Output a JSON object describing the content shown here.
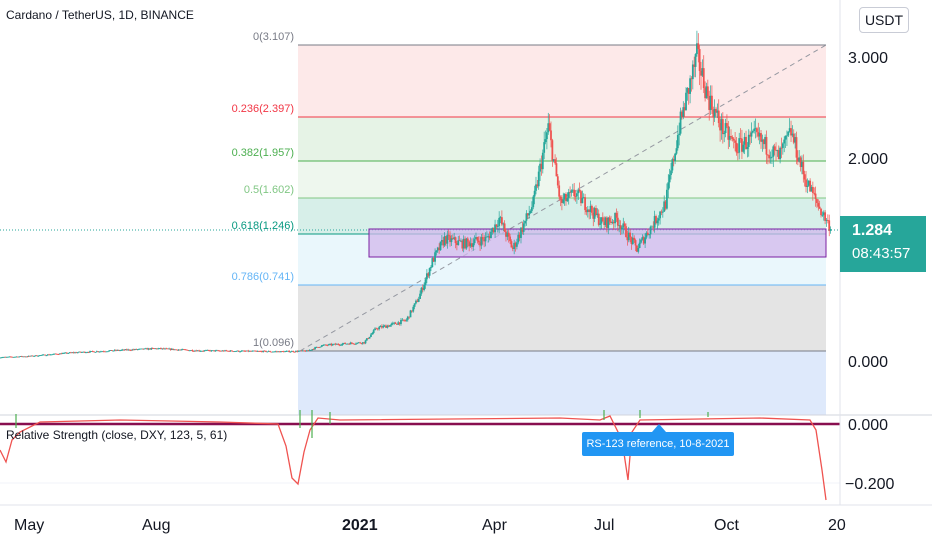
{
  "header": {
    "symbol_title": "Cardano / TetherUS, 1D, BINANCE",
    "currency_button": "USDT"
  },
  "price_label": {
    "price": "1.284",
    "countdown": "08:43:57",
    "color": "#26a69a"
  },
  "fib_labels": {
    "l0": "0(3.107)",
    "l236": "0.236(2.397)",
    "l382": "0.382(1.957)",
    "l5": "0.5(1.602)",
    "l618": "0.618(1.246)",
    "l786": "0.786(0.741)",
    "l1": "1(0.096)"
  },
  "price_axis": {
    "t3": "3.000",
    "t2": "2.000",
    "t0": "0.000"
  },
  "indicator": {
    "legend": "Relative Strength (close, DXY, 123, 5, 61)",
    "axis_t0": "0.000",
    "axis_tm2": "−0.200",
    "note": "RS-123 reference, 10-8-2021"
  },
  "time_axis": {
    "may": "May",
    "aug": "Aug",
    "y2021": "2021",
    "apr": "Apr",
    "jul": "Jul",
    "oct": "Oct",
    "next": "20"
  },
  "colors": {
    "up": "#26a69a",
    "down": "#ef5350",
    "zone": "#7b1fa2",
    "rs_line": "#880e4f"
  },
  "chart_data": {
    "type": "candlestick",
    "title": "Cardano / TetherUS, 1D, BINANCE",
    "last_price": 1.284,
    "y_ticks": [
      0,
      2,
      3
    ],
    "x_ticks": [
      "May",
      "Aug",
      "2021",
      "Apr",
      "Jul",
      "Oct",
      "20"
    ],
    "close_path": [
      [
        "2020-04-08",
        0.033
      ],
      [
        "2020-05-01",
        0.045
      ],
      [
        "2020-06-01",
        0.08
      ],
      [
        "2020-07-01",
        0.1
      ],
      [
        "2020-08-01",
        0.12
      ],
      [
        "2020-09-01",
        0.1
      ],
      [
        "2020-10-01",
        0.095
      ],
      [
        "2020-11-01",
        0.09
      ],
      [
        "2020-11-20",
        0.096
      ],
      [
        "2020-12-01",
        0.15
      ],
      [
        "2020-12-20",
        0.17
      ],
      [
        "2021-01-01",
        0.18
      ],
      [
        "2021-01-10",
        0.32
      ],
      [
        "2021-01-20",
        0.35
      ],
      [
        "2021-02-01",
        0.4
      ],
      [
        "2021-02-10",
        0.62
      ],
      [
        "2021-02-20",
        0.98
      ],
      [
        "2021-03-01",
        1.2
      ],
      [
        "2021-03-15",
        1.15
      ],
      [
        "2021-04-01",
        1.2
      ],
      [
        "2021-04-10",
        1.4
      ],
      [
        "2021-04-20",
        1.1
      ],
      [
        "2021-05-05",
        1.55
      ],
      [
        "2021-05-16",
        2.3
      ],
      [
        "2021-05-25",
        1.55
      ],
      [
        "2021-06-05",
        1.65
      ],
      [
        "2021-06-15",
        1.5
      ],
      [
        "2021-06-25",
        1.35
      ],
      [
        "2021-07-05",
        1.4
      ],
      [
        "2021-07-20",
        1.1
      ],
      [
        "2021-08-01",
        1.35
      ],
      [
        "2021-08-10",
        1.55
      ],
      [
        "2021-08-20",
        2.3
      ],
      [
        "2021-09-02",
        3.0
      ],
      [
        "2021-09-10",
        2.6
      ],
      [
        "2021-09-20",
        2.3
      ],
      [
        "2021-10-01",
        2.1
      ],
      [
        "2021-10-15",
        2.2
      ],
      [
        "2021-11-01",
        2.0
      ],
      [
        "2021-11-10",
        2.25
      ],
      [
        "2021-11-20",
        1.8
      ],
      [
        "2021-12-01",
        1.5
      ],
      [
        "2021-12-10",
        1.284
      ]
    ],
    "fib_retracement": [
      {
        "level": 0,
        "price": 3.107,
        "color": "#787b86"
      },
      {
        "level": 0.236,
        "price": 2.397,
        "color": "#f23645"
      },
      {
        "level": 0.382,
        "price": 1.957,
        "color": "#4caf50"
      },
      {
        "level": 0.5,
        "price": 1.602,
        "color": "#81c784"
      },
      {
        "level": 0.618,
        "price": 1.246,
        "color": "#089981"
      },
      {
        "level": 0.786,
        "price": 0.741,
        "color": "#64b5f6"
      },
      {
        "level": 1,
        "price": 0.096,
        "color": "#787b86"
      }
    ],
    "support_zone": {
      "low": 1.03,
      "high": 1.26,
      "color": "#7b1fa2"
    },
    "indicator": {
      "name": "Relative Strength (close, DXY, 123, 5, 61)",
      "y_ticks": [
        0,
        -0.2
      ],
      "reference_value": 0.0
    }
  }
}
